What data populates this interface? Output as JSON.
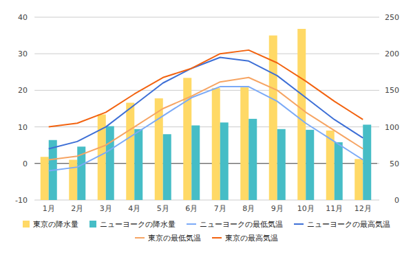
{
  "chart_data": {
    "type": "bar",
    "categories": [
      "1月",
      "2月",
      "3月",
      "4月",
      "5月",
      "6月",
      "7月",
      "8月",
      "9月",
      "10月",
      "11月",
      "12月"
    ],
    "series": [
      {
        "name": "東京の降水量",
        "type": "bar",
        "axis": "y2",
        "color": "#ffd966",
        "values": [
          59,
          55,
          117,
          133,
          139,
          167,
          153,
          154,
          225,
          234,
          95,
          56
        ]
      },
      {
        "name": "ニューヨークの降水量",
        "type": "bar",
        "axis": "y2",
        "color": "#46bdc6",
        "values": [
          82,
          73,
          101,
          97,
          90,
          102,
          106,
          111,
          97,
          96,
          79,
          103
        ]
      },
      {
        "name": "ニューヨークの最低気温",
        "type": "line",
        "axis": "y",
        "color": "#7baaf7",
        "values": [
          -2,
          -1,
          3,
          8,
          13,
          18,
          21,
          21,
          17,
          11,
          6,
          1
        ]
      },
      {
        "name": "ニューヨークの最高気温",
        "type": "line",
        "axis": "y",
        "color": "#3d6fd6",
        "values": [
          4,
          6,
          10,
          16,
          22,
          26,
          29,
          28,
          24,
          18,
          12,
          7
        ]
      },
      {
        "name": "東京の最低気温",
        "type": "line",
        "axis": "y",
        "color": "#f6a463",
        "values": [
          1,
          2,
          5,
          10,
          15,
          18.4,
          22.3,
          23.5,
          20,
          14,
          9,
          4
        ]
      },
      {
        "name": "東京の最高気温",
        "type": "line",
        "axis": "y",
        "color": "#f2620f",
        "values": [
          10,
          11,
          14,
          19,
          23.5,
          26,
          30,
          31,
          27.5,
          22.5,
          17,
          12
        ]
      }
    ],
    "ylim": [
      -10,
      40
    ],
    "yticks": [
      -10,
      0,
      10,
      20,
      30,
      40
    ],
    "y2lim": [
      0,
      250
    ],
    "y2ticks": [
      0,
      50,
      100,
      150,
      200,
      250
    ],
    "grid": true,
    "legend": "bottom"
  }
}
